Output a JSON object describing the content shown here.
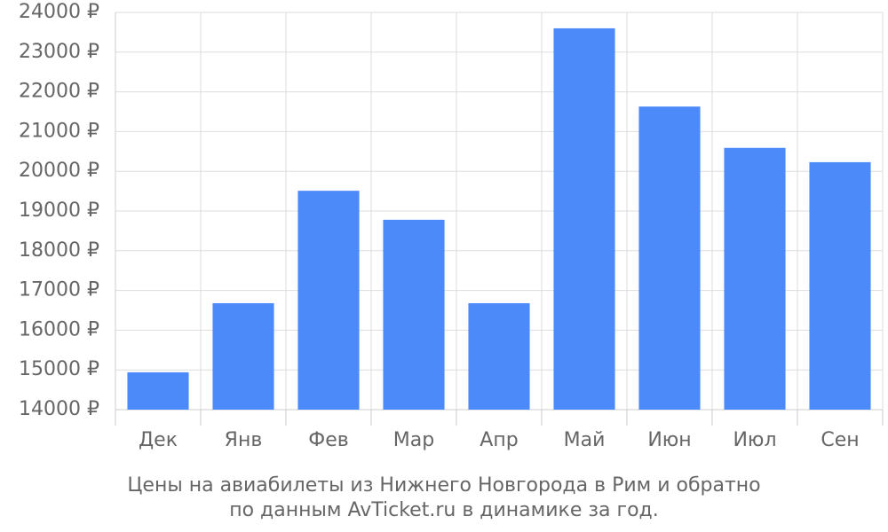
{
  "chart_data": {
    "type": "bar",
    "title": "Цены на авиабилеты из Нижнего Новгорода в Рим и обратно",
    "subtitle": "по данным AvTicket.ru в динамике за год.",
    "categories": [
      "Дек",
      "Янв",
      "Фев",
      "Мар",
      "Апр",
      "Май",
      "Июн",
      "Июл",
      "Сен"
    ],
    "values": [
      14940,
      16680,
      19510,
      18780,
      16680,
      23600,
      21630,
      20590,
      20230
    ],
    "color": "#4d8af9",
    "ylim": [
      14000,
      24000
    ],
    "yticks": [
      {
        "value": 14000,
        "label": "14000 ₽"
      },
      {
        "value": 15000,
        "label": "15000 ₽"
      },
      {
        "value": 16000,
        "label": "16000 ₽"
      },
      {
        "value": 17000,
        "label": "17000 ₽"
      },
      {
        "value": 18000,
        "label": "18000 ₽"
      },
      {
        "value": 19000,
        "label": "19000 ₽"
      },
      {
        "value": 20000,
        "label": "20000 ₽"
      },
      {
        "value": 21000,
        "label": "21000 ₽"
      },
      {
        "value": 22000,
        "label": "22000 ₽"
      },
      {
        "value": 23000,
        "label": "23000 ₽"
      },
      {
        "value": 24000,
        "label": "24000 ₽"
      }
    ],
    "grid": true
  }
}
